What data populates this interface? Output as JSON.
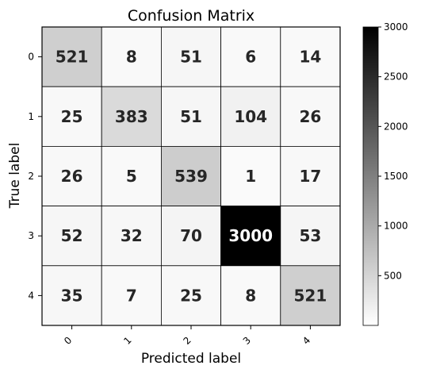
{
  "chart_data": {
    "type": "heatmap",
    "title": "Confusion Matrix",
    "xlabel": "Predicted label",
    "ylabel": "True label",
    "x_categories": [
      "0",
      "1",
      "2",
      "3",
      "4"
    ],
    "y_categories": [
      "0",
      "1",
      "2",
      "3",
      "4"
    ],
    "matrix": [
      [
        521,
        8,
        51,
        6,
        14
      ],
      [
        25,
        383,
        51,
        104,
        26
      ],
      [
        26,
        5,
        539,
        1,
        17
      ],
      [
        52,
        32,
        70,
        3000,
        53
      ],
      [
        35,
        7,
        25,
        8,
        521
      ]
    ],
    "colormap": "Greys",
    "color_range": [
      0,
      3000
    ],
    "colorbar_ticks": [
      "500",
      "1000",
      "1500",
      "2000",
      "2500",
      "3000"
    ],
    "grid": true,
    "colorbar_position": "right"
  }
}
